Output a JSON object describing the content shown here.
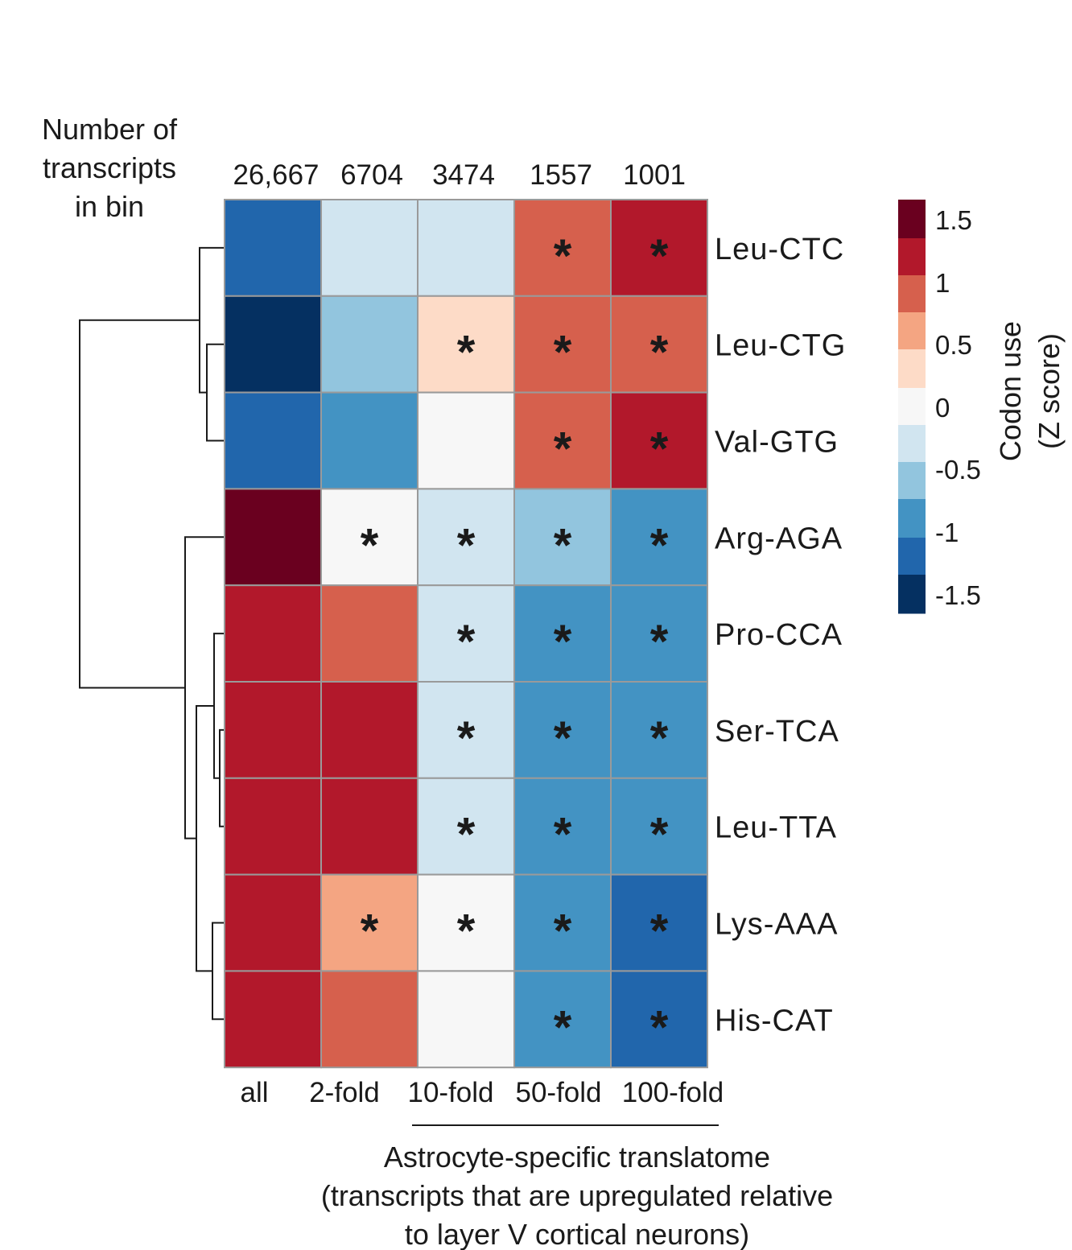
{
  "chart_data": {
    "type": "heatmap",
    "count_header": [
      "Number of",
      "transcripts",
      "in bin"
    ],
    "counts": [
      "26,667",
      "6704",
      "3474",
      "1557",
      "1001"
    ],
    "columns": [
      "all",
      "2-fold",
      "10-fold",
      "50-fold",
      "100-fold"
    ],
    "rows": [
      "Leu-CTC",
      "Leu-CTG",
      "Val-GTG",
      "Arg-AGA",
      "Pro-CCA",
      "Ser-TCA",
      "Leu-TTA",
      "Lys-AAA",
      "His-CAT"
    ],
    "values": [
      [
        -1.25,
        -0.25,
        -0.25,
        0.75,
        1.25
      ],
      [
        -1.75,
        -0.5,
        0.25,
        0.75,
        0.75
      ],
      [
        -1.25,
        -0.75,
        0.0,
        0.75,
        1.25
      ],
      [
        1.75,
        0.0,
        -0.25,
        -0.5,
        -0.75
      ],
      [
        1.25,
        0.75,
        -0.25,
        -0.75,
        -0.75
      ],
      [
        1.25,
        1.25,
        -0.25,
        -0.75,
        -0.75
      ],
      [
        1.25,
        1.25,
        -0.25,
        -0.75,
        -0.75
      ],
      [
        1.25,
        0.5,
        0.0,
        -0.75,
        -1.25
      ],
      [
        1.25,
        0.75,
        0.0,
        -0.75,
        -1.25
      ]
    ],
    "significant": [
      [
        false,
        false,
        false,
        true,
        true
      ],
      [
        false,
        false,
        true,
        true,
        true
      ],
      [
        false,
        false,
        false,
        true,
        true
      ],
      [
        false,
        true,
        true,
        true,
        true
      ],
      [
        false,
        false,
        true,
        true,
        true
      ],
      [
        false,
        false,
        true,
        true,
        true
      ],
      [
        false,
        false,
        true,
        true,
        true
      ],
      [
        false,
        true,
        true,
        true,
        true
      ],
      [
        false,
        false,
        false,
        true,
        true
      ]
    ],
    "significance_marker": "*",
    "colorbar": {
      "title_lines": [
        "Codon use",
        "(Z score)"
      ],
      "tick_labels": [
        "1.5",
        "1",
        "0.5",
        "0",
        "-0.5",
        "-1",
        "-1.5"
      ],
      "range": [
        -2,
        2
      ],
      "colors": [
        "#6a001f",
        "#b2182b",
        "#d6604d",
        "#f4a582",
        "#fddbc7",
        "#f7f7f7",
        "#d1e5f0",
        "#92c5de",
        "#4393c3",
        "#2166ac",
        "#053061"
      ]
    },
    "xlabel": [
      "Astrocyte-specific translatome",
      "(transcripts that are upregulated relative",
      "to layer V cortical neurons)"
    ],
    "dendrogram": "row clustering: (Leu-CTC, (Leu-CTG, Val-GTG)) and (Arg-AGA, ((Pro-CCA, (Ser-TCA, Leu-TTA)), (Lys-AAA, His-CAT)))"
  }
}
